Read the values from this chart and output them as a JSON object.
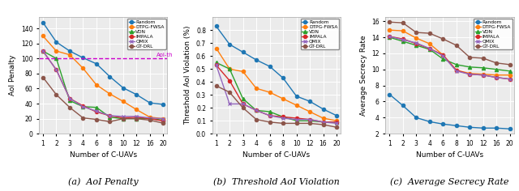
{
  "x": [
    1,
    2,
    3,
    4,
    6,
    8,
    10,
    12,
    16,
    20
  ],
  "x_labels": [
    "1",
    "2",
    "3",
    "4",
    "6",
    "8",
    "10",
    "12",
    "16",
    "20"
  ],
  "aoi_penalty": {
    "Random": [
      148,
      122,
      110,
      101,
      93,
      76,
      61,
      52,
      41,
      39
    ],
    "DTPG-FWSA": [
      130,
      110,
      105,
      87,
      65,
      53,
      43,
      32,
      22,
      20
    ],
    "VDN": [
      110,
      100,
      44,
      36,
      35,
      22,
      20,
      20,
      20,
      18
    ],
    "IMPALA": [
      110,
      85,
      47,
      37,
      29,
      24,
      21,
      22,
      20,
      17
    ],
    "QMIX": [
      110,
      85,
      47,
      36,
      30,
      24,
      23,
      23,
      21,
      20
    ],
    "GT-DRL": [
      75,
      52,
      35,
      21,
      19,
      16,
      20,
      20,
      18,
      14
    ]
  },
  "aoi_threshold": 100,
  "threshold_aoi": {
    "Random": [
      0.83,
      0.69,
      0.63,
      0.57,
      0.52,
      0.43,
      0.29,
      0.25,
      0.19,
      0.14
    ],
    "DTPG-FWSA": [
      0.66,
      0.5,
      0.48,
      0.35,
      0.32,
      0.27,
      0.22,
      0.17,
      0.12,
      0.1
    ],
    "VDN": [
      0.55,
      0.5,
      0.27,
      0.18,
      0.17,
      0.13,
      0.1,
      0.1,
      0.09,
      0.09
    ],
    "IMPALA": [
      0.53,
      0.41,
      0.23,
      0.18,
      0.14,
      0.13,
      0.12,
      0.11,
      0.09,
      0.09
    ],
    "QMIX": [
      0.53,
      0.23,
      0.23,
      0.18,
      0.14,
      0.12,
      0.11,
      0.11,
      0.09,
      0.08
    ],
    "GT-DRL": [
      0.37,
      0.32,
      0.2,
      0.11,
      0.09,
      0.08,
      0.08,
      0.08,
      0.07,
      0.05
    ]
  },
  "secrecy_rate": {
    "Random": [
      6.9,
      5.5,
      4.0,
      3.5,
      3.2,
      3.0,
      2.8,
      2.7,
      2.7,
      2.6
    ],
    "DTPG-FWSA": [
      14.9,
      14.8,
      13.9,
      13.2,
      11.8,
      9.9,
      9.5,
      9.4,
      9.3,
      9.3
    ],
    "VDN": [
      14.0,
      13.5,
      13.0,
      12.5,
      11.3,
      10.6,
      10.3,
      10.2,
      10.0,
      9.8
    ],
    "IMPALA": [
      14.1,
      13.8,
      13.2,
      12.6,
      11.8,
      9.9,
      9.4,
      9.3,
      9.0,
      8.8
    ],
    "QMIX": [
      14.1,
      13.7,
      13.3,
      12.6,
      11.7,
      9.8,
      9.4,
      9.3,
      9.0,
      8.8
    ],
    "GT-DRL": [
      15.9,
      15.8,
      14.6,
      14.5,
      13.8,
      13.0,
      11.5,
      11.4,
      10.8,
      10.6
    ]
  },
  "colors": {
    "Random": "#1f77b4",
    "DTPG-FWSA": "#ff7f0e",
    "VDN": "#2ca02c",
    "IMPALA": "#d62728",
    "QMIX": "#9467bd",
    "GT-DRL": "#8c564b"
  },
  "markers": {
    "Random": "o",
    "DTPG-FWSA": "o",
    "VDN": "^",
    "IMPALA": "o",
    "QMIX": "x",
    "GT-DRL": "o"
  },
  "aoi_ylim": [
    0,
    155
  ],
  "threshold_ylim": [
    0.0,
    0.9
  ],
  "secrecy_ylim": [
    2,
    16.5
  ],
  "aoi_yticks": [
    0,
    20,
    40,
    60,
    80,
    100,
    120,
    140
  ],
  "threshold_yticks": [
    0.0,
    0.1,
    0.2,
    0.3,
    0.4,
    0.5,
    0.6,
    0.7,
    0.8
  ],
  "secrecy_yticks": [
    2,
    4,
    6,
    8,
    10,
    12,
    14,
    16
  ],
  "xlabel": "Number of C-UAVs",
  "aoi_ylabel": "AoI Penalty",
  "threshold_ylabel": "Threshold AoI Violation (%)",
  "secrecy_ylabel": "Average Secrecy Rate",
  "aoi_label": "AoI-th",
  "subtitles": [
    "(a)  AoI Penalty",
    "(b)  Threshold AoI Violation",
    "(c)  Average Secrecy Rate"
  ],
  "bg_color": "#ebebeb",
  "legend_order": [
    "Random",
    "DTPG-FWSA",
    "VDN",
    "IMPALA",
    "QMIX",
    "GT-DRL"
  ]
}
